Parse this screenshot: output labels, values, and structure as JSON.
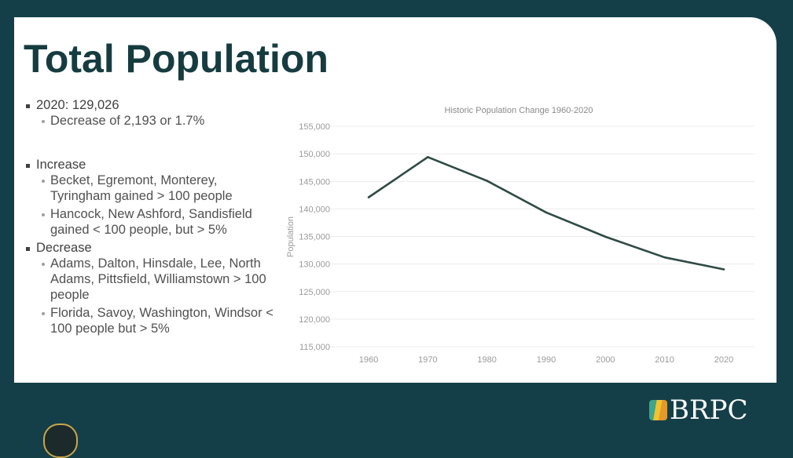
{
  "slide": {
    "title": "Total Population",
    "bullets": {
      "b1": "2020: 129,026",
      "b1_sub": "Decrease of 2,193 or 1.7%",
      "b2": "Increase",
      "b2_sub1": "Becket, Egremont, Monterey, Tyringham gained > 100 people",
      "b2_sub2": "Hancock, New Ashford, Sandisfield gained < 100 people, but > 5%",
      "b3": "Decrease",
      "b3_sub1": "Adams, Dalton, Hinsdale, Lee, North Adams, Pittsfield, Williamstown > 100 people",
      "b3_sub2": "Florida, Savoy, Washington, Windsor < 100 people but > 5%"
    }
  },
  "logo": {
    "text": "BRPC"
  },
  "chart_data": {
    "type": "line",
    "title": "Historic Population Change 1960-2020",
    "xlabel": "",
    "ylabel": "Population",
    "categories": [
      "1960",
      "1970",
      "1980",
      "1990",
      "2000",
      "2010",
      "2020"
    ],
    "series": [
      {
        "name": "Population",
        "values": [
          142100,
          149400,
          145100,
          139350,
          134950,
          131200,
          129026
        ],
        "color": "#2f4a45"
      }
    ],
    "ylim": [
      115000,
      155000
    ],
    "yticks": [
      115000,
      120000,
      125000,
      130000,
      135000,
      140000,
      145000,
      150000,
      155000
    ],
    "ytick_labels": [
      "115,000",
      "120,000",
      "125,000",
      "130,000",
      "135,000",
      "140,000",
      "145,000",
      "150,000",
      "155,000"
    ],
    "grid": true,
    "legend": "none"
  }
}
